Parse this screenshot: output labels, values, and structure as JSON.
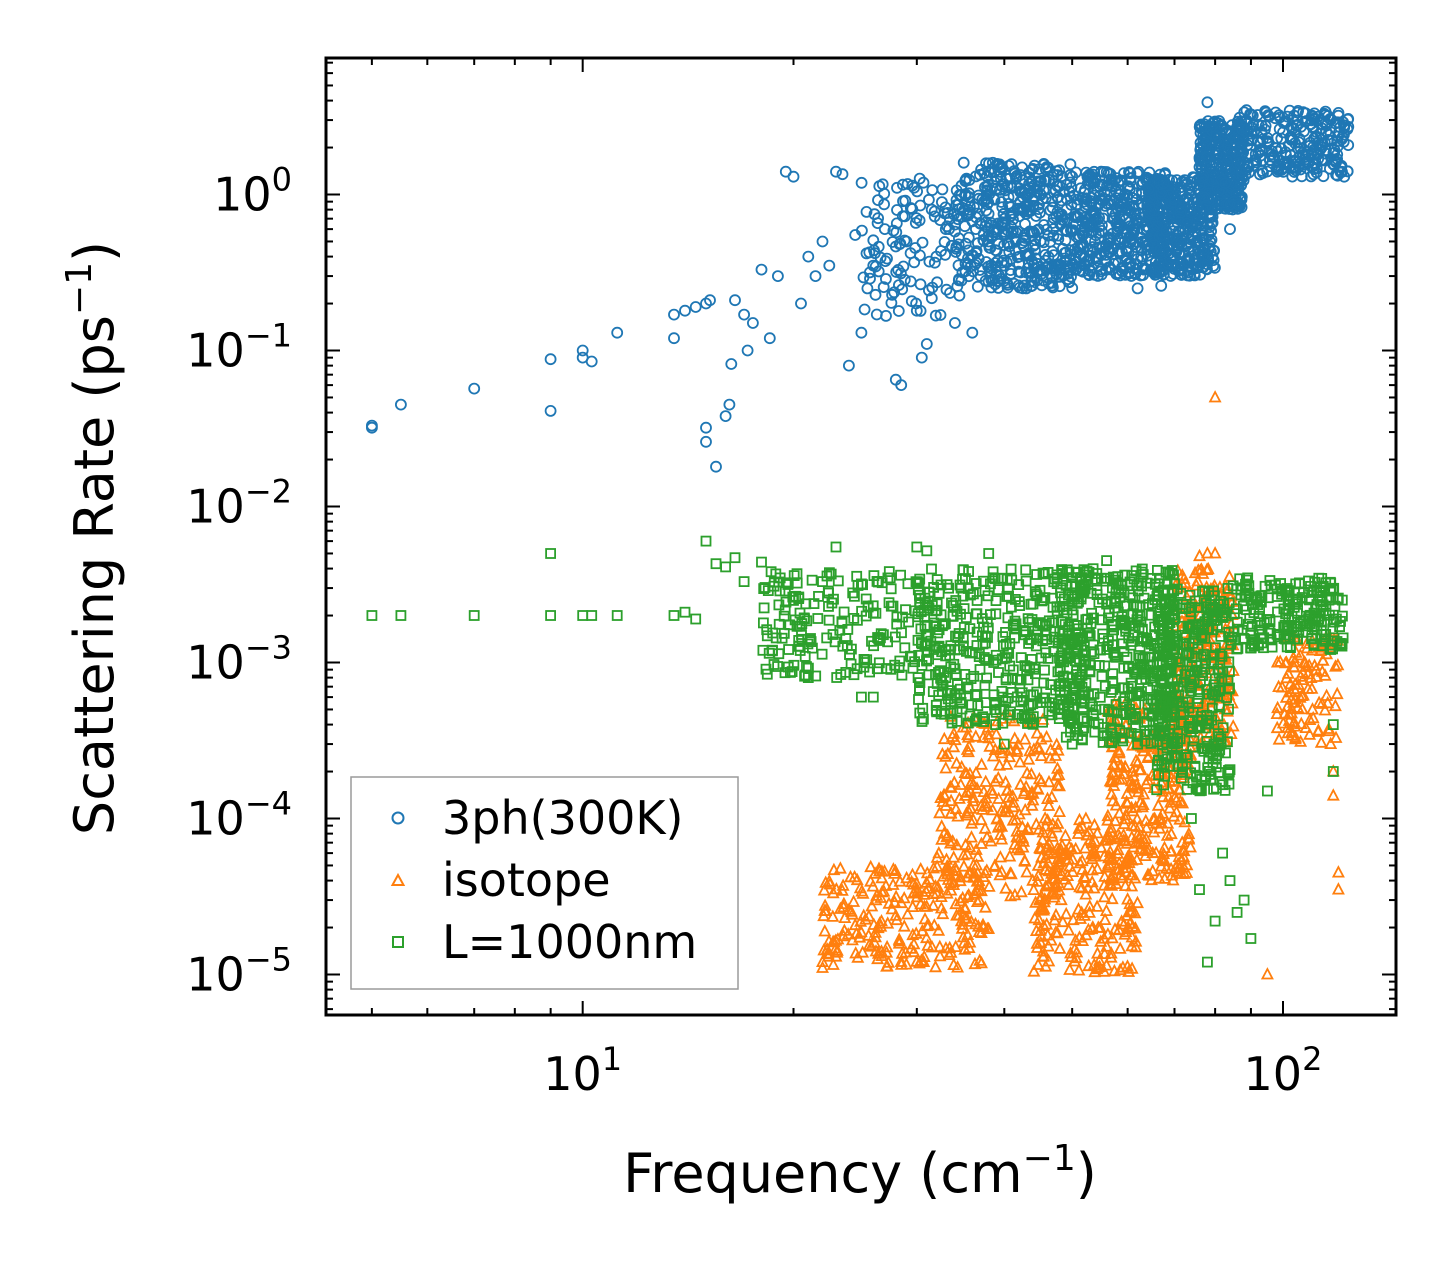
{
  "chart_data": {
    "type": "scatter",
    "title": "",
    "xlabel": "Frequency (cm",
    "xlabel_sup": "−1",
    "xlabel_end": ")",
    "ylabel": "Scattering Rate (ps",
    "ylabel_sup": "−1",
    "ylabel_end": ")",
    "xscale": "log",
    "yscale": "log",
    "xlim": [
      4.3,
      145
    ],
    "ylim": [
      5.5e-06,
      7.5
    ],
    "xticks": [
      {
        "value": 10,
        "base": "10",
        "exp": "1"
      },
      {
        "value": 100,
        "base": "10",
        "exp": "2"
      }
    ],
    "yticks": [
      {
        "value": 1e-05,
        "base": "10",
        "exp": "−5"
      },
      {
        "value": 0.0001,
        "base": "10",
        "exp": "−4"
      },
      {
        "value": 0.001,
        "base": "10",
        "exp": "−3"
      },
      {
        "value": 0.01,
        "base": "10",
        "exp": "−2"
      },
      {
        "value": 0.1,
        "base": "10",
        "exp": "−1"
      },
      {
        "value": 1,
        "base": "10",
        "exp": "0"
      }
    ],
    "legend": {
      "position": "lower-left",
      "entries": [
        {
          "label": "3ph(300K)",
          "marker": "circle",
          "color": "#1f77b4"
        },
        {
          "label": "isotope",
          "marker": "triangle",
          "color": "#ff7f0e"
        },
        {
          "label": "L=1000nm",
          "marker": "square",
          "color": "#2ca02c"
        }
      ]
    },
    "series": [
      {
        "name": "3ph(300K)",
        "marker": "circle",
        "color": "#1f77b4",
        "points": [
          [
            5.0,
            0.032
          ],
          [
            5.0,
            0.033
          ],
          [
            5.5,
            0.045
          ],
          [
            7.0,
            0.057
          ],
          [
            9.0,
            0.088
          ],
          [
            9.0,
            0.041
          ],
          [
            10.0,
            0.1
          ],
          [
            10.0,
            0.09
          ],
          [
            10.3,
            0.085
          ],
          [
            11.2,
            0.13
          ],
          [
            13.5,
            0.17
          ],
          [
            13.5,
            0.12
          ],
          [
            14.0,
            0.18
          ],
          [
            14.5,
            0.19
          ],
          [
            15.0,
            0.2
          ],
          [
            15.2,
            0.21
          ],
          [
            15.0,
            0.032
          ],
          [
            15.0,
            0.026
          ],
          [
            15.5,
            0.018
          ],
          [
            16.0,
            0.038
          ],
          [
            16.2,
            0.045
          ],
          [
            16.3,
            0.082
          ],
          [
            16.5,
            0.21
          ],
          [
            17.0,
            0.17
          ],
          [
            17.2,
            0.1
          ],
          [
            17.5,
            0.15
          ],
          [
            18.0,
            0.33
          ],
          [
            18.5,
            0.12
          ],
          [
            19.0,
            0.3
          ],
          [
            19.5,
            1.4
          ],
          [
            20.0,
            1.3
          ],
          [
            20.5,
            0.2
          ],
          [
            21.0,
            0.4
          ],
          [
            21.5,
            0.3
          ],
          [
            22.0,
            0.5
          ],
          [
            22.5,
            0.35
          ],
          [
            23.0,
            1.4
          ],
          [
            23.5,
            1.35
          ],
          [
            24.0,
            0.08
          ],
          [
            24.5,
            0.55
          ],
          [
            25.0,
            0.13
          ],
          [
            25.5,
            0.25
          ],
          [
            26.0,
            0.35
          ],
          [
            27.0,
            0.6
          ],
          [
            28.0,
            0.065
          ],
          [
            28.5,
            0.06
          ],
          [
            29.0,
            0.5
          ],
          [
            30.0,
            0.18
          ],
          [
            30.5,
            0.09
          ],
          [
            31.0,
            0.11
          ],
          [
            31.5,
            0.8
          ],
          [
            32.0,
            0.4
          ],
          [
            33.0,
            0.6
          ],
          [
            34.0,
            0.15
          ],
          [
            35.0,
            1.6
          ],
          [
            36.0,
            0.13
          ],
          [
            37.0,
            0.3
          ],
          [
            38.0,
            0.5
          ],
          [
            39.0,
            1.3
          ],
          [
            40.0,
            0.7
          ],
          [
            41.0,
            1.1
          ],
          [
            42.0,
            0.4
          ],
          [
            43.0,
            0.25
          ],
          [
            44.0,
            0.9
          ],
          [
            45.0,
            1.2
          ],
          [
            46.0,
            1.5
          ],
          [
            47.0,
            0.6
          ],
          [
            48.0,
            0.35
          ],
          [
            50.0,
            1.3
          ],
          [
            52.0,
            0.9
          ],
          [
            54.0,
            0.7
          ],
          [
            55.0,
            1.4
          ],
          [
            57.0,
            0.45
          ],
          [
            58.0,
            0.6
          ],
          [
            60.0,
            1.1
          ],
          [
            62.0,
            0.25
          ],
          [
            63.0,
            0.5
          ],
          [
            65.0,
            0.8
          ],
          [
            67.0,
            0.26
          ],
          [
            70.0,
            0.5
          ],
          [
            72.0,
            0.7
          ],
          [
            74.0,
            1.2
          ],
          [
            76.0,
            1.5
          ],
          [
            78.0,
            3.9
          ],
          [
            79.0,
            2.5
          ],
          [
            80.0,
            1.8
          ],
          [
            82.0,
            1.2
          ],
          [
            84.0,
            0.6
          ],
          [
            86.0,
            1.3
          ],
          [
            88.0,
            1.6
          ],
          [
            90.0,
            1.8
          ],
          [
            95.0,
            2.2
          ],
          [
            100.0,
            2.5
          ],
          [
            105.0,
            2.8
          ],
          [
            110.0,
            3.2
          ],
          [
            115.0,
            3.4
          ],
          [
            120.0,
            3.2
          ]
        ],
        "clusters": [
          {
            "xmin": 34,
            "xmax": 50,
            "ymin": 0.25,
            "ymax": 1.6,
            "n": 420
          },
          {
            "xmin": 50,
            "xmax": 68,
            "ymin": 0.3,
            "ymax": 1.4,
            "n": 380
          },
          {
            "xmin": 64,
            "xmax": 80,
            "ymin": 0.3,
            "ymax": 1.3,
            "n": 380
          },
          {
            "xmin": 76,
            "xmax": 88,
            "ymin": 0.8,
            "ymax": 3.0,
            "n": 300
          },
          {
            "xmin": 86,
            "xmax": 124,
            "ymin": 1.3,
            "ymax": 3.5,
            "n": 260
          },
          {
            "xmin": 25,
            "xmax": 36,
            "ymin": 0.15,
            "ymax": 1.3,
            "n": 120
          }
        ]
      },
      {
        "name": "isotope",
        "marker": "triangle",
        "color": "#ff7f0e",
        "points": [
          [
            22.0,
            1.1e-05
          ],
          [
            22.0,
            1.2e-05
          ],
          [
            23.0,
            1.3e-05
          ],
          [
            80.0,
            0.05
          ],
          [
            76.0,
            0.0048
          ],
          [
            78.0,
            0.005
          ],
          [
            80.0,
            0.005
          ],
          [
            120.0,
            4.5e-05
          ],
          [
            120.0,
            3.5e-05
          ],
          [
            118.0,
            0.00014
          ],
          [
            118.0,
            0.0002
          ],
          [
            117.0,
            0.0003
          ],
          [
            95.0,
            1e-05
          ]
        ],
        "clusters": [
          {
            "xmin": 22,
            "xmax": 38,
            "ymin": 1.1e-05,
            "ymax": 5e-05,
            "n": 240
          },
          {
            "xmin": 32,
            "xmax": 48,
            "ymin": 3e-05,
            "ymax": 0.00045,
            "n": 260
          },
          {
            "xmin": 44,
            "xmax": 62,
            "ymin": 1e-05,
            "ymax": 0.0001,
            "n": 240
          },
          {
            "xmin": 56,
            "xmax": 74,
            "ymin": 4e-05,
            "ymax": 0.0006,
            "n": 300
          },
          {
            "xmin": 70,
            "xmax": 85,
            "ymin": 0.0003,
            "ymax": 0.004,
            "n": 220
          },
          {
            "xmin": 98,
            "xmax": 120,
            "ymin": 0.0003,
            "ymax": 0.0015,
            "n": 110
          }
        ]
      },
      {
        "name": "L=1000nm",
        "marker": "square",
        "color": "#2ca02c",
        "points": [
          [
            5.0,
            0.002
          ],
          [
            5.5,
            0.002
          ],
          [
            7.0,
            0.002
          ],
          [
            9.0,
            0.002
          ],
          [
            9.0,
            0.005
          ],
          [
            10.0,
            0.002
          ],
          [
            10.3,
            0.002
          ],
          [
            11.2,
            0.002
          ],
          [
            13.5,
            0.002
          ],
          [
            14.0,
            0.0021
          ],
          [
            14.5,
            0.0019
          ],
          [
            15.0,
            0.006
          ],
          [
            15.5,
            0.0043
          ],
          [
            16.0,
            0.0041
          ],
          [
            16.5,
            0.0047
          ],
          [
            17.0,
            0.0033
          ],
          [
            18.0,
            0.0044
          ],
          [
            20.0,
            0.0025
          ],
          [
            21.0,
            0.0008
          ],
          [
            22.0,
            0.0033
          ],
          [
            23.0,
            0.0055
          ],
          [
            25.0,
            0.0006
          ],
          [
            26.0,
            0.0006
          ],
          [
            30.0,
            0.0055
          ],
          [
            31.0,
            0.0052
          ],
          [
            33.0,
            0.0008
          ],
          [
            38.0,
            0.005
          ],
          [
            40.0,
            0.0003
          ],
          [
            44.0,
            0.00045
          ],
          [
            50.0,
            0.0003
          ],
          [
            56.0,
            0.0045
          ],
          [
            62.0,
            0.0003
          ],
          [
            70.0,
            0.00025
          ],
          [
            74.0,
            0.0001
          ],
          [
            76.0,
            3.5e-05
          ],
          [
            78.0,
            1.2e-05
          ],
          [
            80.0,
            2.2e-05
          ],
          [
            82.0,
            6e-05
          ],
          [
            84.0,
            4e-05
          ],
          [
            86.0,
            2.5e-05
          ],
          [
            88.0,
            3e-05
          ],
          [
            90.0,
            1.7e-05
          ],
          [
            95.0,
            0.00015
          ],
          [
            118.0,
            0.0002
          ],
          [
            118.0,
            0.0004
          ]
        ],
        "clusters": [
          {
            "xmin": 18,
            "xmax": 32,
            "ymin": 0.0008,
            "ymax": 0.004,
            "n": 200
          },
          {
            "xmin": 30,
            "xmax": 52,
            "ymin": 0.0004,
            "ymax": 0.004,
            "n": 420
          },
          {
            "xmin": 48,
            "xmax": 70,
            "ymin": 0.0003,
            "ymax": 0.004,
            "n": 420
          },
          {
            "xmin": 66,
            "xmax": 84,
            "ymin": 0.00015,
            "ymax": 0.003,
            "n": 360
          },
          {
            "xmin": 84,
            "xmax": 122,
            "ymin": 0.0012,
            "ymax": 0.0035,
            "n": 220
          }
        ]
      }
    ]
  }
}
